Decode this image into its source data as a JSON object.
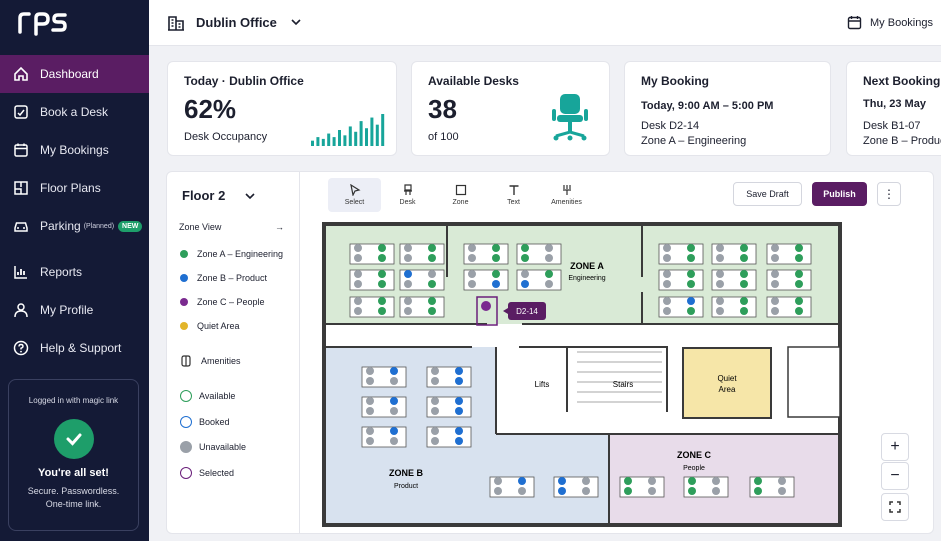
{
  "brand": {
    "logo_text": "rps"
  },
  "sidebar": {
    "items": [
      {
        "label": "Dashboard",
        "icon": "home-icon",
        "active": true
      },
      {
        "label": "Book a Desk",
        "icon": "book-desk-icon"
      },
      {
        "label": "My Bookings",
        "icon": "calendar-icon"
      },
      {
        "label": "Floor Plans",
        "icon": "floor-plan-icon"
      },
      {
        "label": "Parking",
        "sub": "(Planned)",
        "badge": "NEW",
        "icon": "car-icon"
      },
      {
        "label": "Reports",
        "icon": "chart-icon"
      },
      {
        "label": "My Profile",
        "icon": "user-icon"
      },
      {
        "label": "Help & Support",
        "icon": "help-icon"
      }
    ],
    "login": {
      "title": "Logged in with magic link",
      "status": "You're all set!",
      "line1": "Secure. Passwordless.",
      "line2": "One-time link."
    }
  },
  "topbar": {
    "office": "Dublin Office",
    "my_bookings": "My Bookings"
  },
  "cards": {
    "occupancy": {
      "title": "Today · Dublin Office",
      "value": "62%",
      "caption": "Desk Occupancy",
      "bars": [
        3,
        5,
        4,
        7,
        5,
        9,
        6,
        11,
        8,
        14,
        10,
        16,
        12,
        18
      ]
    },
    "available": {
      "title": "Available Desks",
      "value": "38",
      "caption": "of 100"
    },
    "my_booking": {
      "title": "My Booking",
      "time": "Today, 9:00 AM – 5:00 PM",
      "desk": "Desk D2-14",
      "zone": "Zone A – Engineering"
    },
    "next_booking": {
      "title": "Next Booking",
      "time": "Thu, 23 May",
      "desk": "Desk B1-07",
      "zone": "Zone B – Product"
    }
  },
  "floor": {
    "selected": "Floor 2",
    "zone_view": "Zone View",
    "zones": [
      {
        "label": "Zone A – Engineering",
        "color": "#2e9e5b"
      },
      {
        "label": "Zone B – Product",
        "color": "#1f6fd1"
      },
      {
        "label": "Zone C – People",
        "color": "#7a2a8f"
      },
      {
        "label": "Quiet Area",
        "color": "#e2b52a"
      }
    ],
    "amenities": "Amenities",
    "statuses": [
      {
        "label": "Available",
        "color": "#2e9e5b"
      },
      {
        "label": "Booked",
        "color": "#1f6fd1"
      },
      {
        "label": "Unavailable",
        "color": "#9aa0a8"
      },
      {
        "label": "Selected",
        "color": "#6a1f7a"
      }
    ]
  },
  "toolbar": {
    "tools": [
      {
        "label": "Select",
        "icon": "cursor-icon",
        "active": true
      },
      {
        "label": "Desk",
        "icon": "chair-icon"
      },
      {
        "label": "Zone",
        "icon": "square-icon"
      },
      {
        "label": "Text",
        "icon": "text-icon"
      },
      {
        "label": "Amenities",
        "icon": "amenities-icon"
      }
    ],
    "save_draft": "Save Draft",
    "publish": "Publish",
    "more": "⋮"
  },
  "map": {
    "zone_a": "ZONE A",
    "zone_a_name": "Engineering",
    "zone_b": "ZONE B",
    "zone_b_name": "Product",
    "zone_c": "ZONE C",
    "zone_c_name": "People",
    "quiet": "Quiet",
    "quiet2": "Area",
    "lifts": "Lifts",
    "stairs": "Stairs",
    "tooltip": "D2-14"
  },
  "zoom": {
    "in": "+",
    "out": "−"
  }
}
